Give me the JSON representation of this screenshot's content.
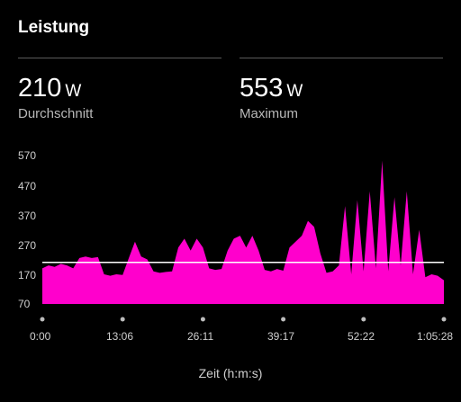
{
  "header": {
    "title": "Leistung"
  },
  "stats": [
    {
      "value": "210",
      "unit": "W",
      "label": "Durchschnitt"
    },
    {
      "value": "553",
      "unit": "W",
      "label": "Maximum"
    }
  ],
  "colors": {
    "series": "#ff00cc",
    "average_line": "#ffffff",
    "background": "#000000"
  },
  "chart_data": {
    "type": "area",
    "xlabel": "Zeit (h:m:s)",
    "ylabel": "",
    "ylim": [
      70,
      570
    ],
    "y_ticks": [
      "570",
      "470",
      "370",
      "270",
      "170",
      "70"
    ],
    "x_ticks": [
      "0:00",
      "13:06",
      "26:11",
      "39:17",
      "52:22",
      "1:05:28"
    ],
    "average_line": 210,
    "maximum": 553,
    "series": [
      {
        "values": [
          [
            0,
            190
          ],
          [
            1,
            200
          ],
          [
            2,
            195
          ],
          [
            3,
            205
          ],
          [
            4,
            200
          ],
          [
            5,
            190
          ],
          [
            6,
            225
          ],
          [
            7,
            230
          ],
          [
            8,
            225
          ],
          [
            9,
            228
          ],
          [
            10,
            170
          ],
          [
            11,
            165
          ],
          [
            12,
            170
          ],
          [
            13,
            168
          ],
          [
            14,
            225
          ],
          [
            15,
            280
          ],
          [
            16,
            230
          ],
          [
            17,
            220
          ],
          [
            18,
            180
          ],
          [
            19,
            175
          ],
          [
            20,
            178
          ],
          [
            21,
            180
          ],
          [
            22,
            260
          ],
          [
            23,
            290
          ],
          [
            24,
            250
          ],
          [
            25,
            290
          ],
          [
            26,
            260
          ],
          [
            27,
            190
          ],
          [
            28,
            185
          ],
          [
            29,
            188
          ],
          [
            30,
            250
          ],
          [
            31,
            290
          ],
          [
            32,
            300
          ],
          [
            33,
            260
          ],
          [
            34,
            300
          ],
          [
            35,
            250
          ],
          [
            36,
            185
          ],
          [
            37,
            180
          ],
          [
            38,
            188
          ],
          [
            39,
            182
          ],
          [
            40,
            260
          ],
          [
            41,
            280
          ],
          [
            42,
            300
          ],
          [
            43,
            350
          ],
          [
            44,
            330
          ],
          [
            45,
            240
          ],
          [
            46,
            175
          ],
          [
            47,
            180
          ],
          [
            48,
            200
          ],
          [
            49,
            400
          ],
          [
            50,
            170
          ],
          [
            51,
            420
          ],
          [
            52,
            180
          ],
          [
            53,
            450
          ],
          [
            54,
            190
          ],
          [
            55,
            553
          ],
          [
            56,
            180
          ],
          [
            57,
            430
          ],
          [
            58,
            200
          ],
          [
            59,
            450
          ],
          [
            60,
            170
          ],
          [
            61,
            320
          ],
          [
            62,
            160
          ],
          [
            63,
            170
          ],
          [
            64,
            165
          ],
          [
            65,
            150
          ]
        ]
      }
    ]
  }
}
